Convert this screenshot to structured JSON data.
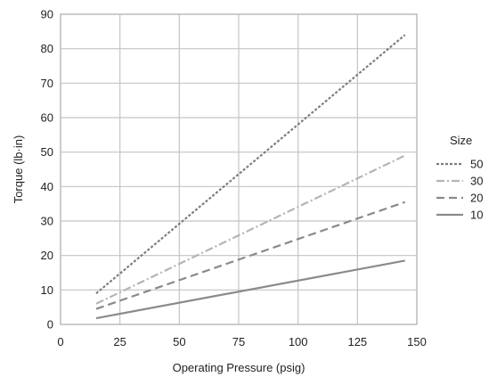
{
  "chart_data": {
    "type": "line",
    "title": "",
    "xlabel": "Operating Pressure (psig)",
    "ylabel": "Torque (lb·in)",
    "xlim": [
      0,
      150
    ],
    "ylim": [
      0,
      90
    ],
    "xticks": [
      0,
      25,
      50,
      75,
      100,
      125,
      150
    ],
    "yticks": [
      0,
      10,
      20,
      30,
      40,
      50,
      60,
      70,
      80,
      90
    ],
    "grid": true,
    "legend": {
      "title": "Size",
      "position": "right"
    },
    "series": [
      {
        "name": "50",
        "x": [
          15,
          145
        ],
        "y": [
          9,
          84
        ],
        "color": "#7d7d7d",
        "dash": "dotted"
      },
      {
        "name": "30",
        "x": [
          15,
          145
        ],
        "y": [
          6,
          49
        ],
        "color": "#b5b5b5",
        "dash": "dash-dot"
      },
      {
        "name": "20",
        "x": [
          15,
          145
        ],
        "y": [
          4.5,
          35.5
        ],
        "color": "#8a8a8a",
        "dash": "dashed"
      },
      {
        "name": "10",
        "x": [
          15,
          145
        ],
        "y": [
          1.8,
          18.5
        ],
        "color": "#8a8a8a",
        "dash": "solid"
      }
    ]
  }
}
